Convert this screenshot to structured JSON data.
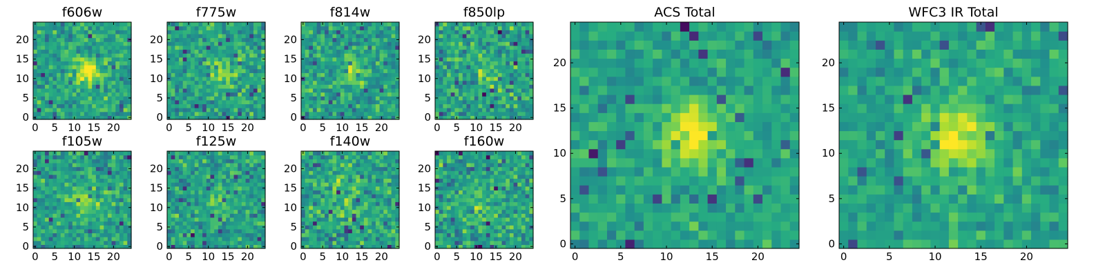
{
  "figure": {
    "colormap": "viridis",
    "background": "#ffffff"
  },
  "chart_data": [
    {
      "type": "heatmap",
      "title": "f606w",
      "grid": false,
      "xlim": [
        -0.5,
        24.5
      ],
      "ylim": [
        -0.5,
        24.5
      ],
      "xticks": [
        0,
        5,
        10,
        15,
        20
      ],
      "yticks": [
        0,
        5,
        10,
        15,
        20
      ],
      "source_center": [
        13.5,
        12
      ],
      "source_width": 2.5,
      "peak": 0.95,
      "noise": 0.2,
      "seed": 11
    },
    {
      "type": "heatmap",
      "title": "f775w",
      "grid": false,
      "xlim": [
        -0.5,
        24.5
      ],
      "ylim": [
        -0.5,
        24.5
      ],
      "xticks": [
        0,
        5,
        10,
        15,
        20
      ],
      "yticks": [
        0,
        5,
        10,
        15,
        20
      ],
      "source_center": [
        14,
        11.5
      ],
      "source_width": 2.3,
      "peak": 0.7,
      "noise": 0.2,
      "seed": 23
    },
    {
      "type": "heatmap",
      "title": "f814w",
      "grid": false,
      "xlim": [
        -0.5,
        24.5
      ],
      "ylim": [
        -0.5,
        24.5
      ],
      "xticks": [
        0,
        5,
        10,
        15,
        20
      ],
      "yticks": [
        0,
        5,
        10,
        15,
        20
      ],
      "source_center": [
        13,
        12
      ],
      "source_width": 2.2,
      "peak": 0.6,
      "noise": 0.2,
      "seed": 37
    },
    {
      "type": "heatmap",
      "title": "f850lp",
      "grid": false,
      "xlim": [
        -0.5,
        24.5
      ],
      "ylim": [
        -0.5,
        24.5
      ],
      "xticks": [
        0,
        5,
        10,
        15,
        20
      ],
      "yticks": [
        0,
        5,
        10,
        15,
        20
      ],
      "source_center": [
        13,
        11
      ],
      "source_width": 2.5,
      "peak": 0.3,
      "noise": 0.22,
      "seed": 41
    },
    {
      "type": "heatmap",
      "title": "f105w",
      "grid": false,
      "xlim": [
        -0.5,
        24.5
      ],
      "ylim": [
        -0.5,
        24.5
      ],
      "xticks": [
        0,
        5,
        10,
        15,
        20
      ],
      "yticks": [
        0,
        5,
        10,
        15,
        20
      ],
      "source_center": [
        12,
        11.5
      ],
      "source_width": 3.0,
      "peak": 0.45,
      "noise": 0.2,
      "seed": 53
    },
    {
      "type": "heatmap",
      "title": "f125w",
      "grid": false,
      "xlim": [
        -0.5,
        24.5
      ],
      "ylim": [
        -0.5,
        24.5
      ],
      "xticks": [
        0,
        5,
        10,
        15,
        20
      ],
      "yticks": [
        0,
        5,
        10,
        15,
        20
      ],
      "source_center": [
        13,
        11
      ],
      "source_width": 3.0,
      "peak": 0.35,
      "noise": 0.2,
      "seed": 67
    },
    {
      "type": "heatmap",
      "title": "f140w",
      "grid": false,
      "xlim": [
        -0.5,
        24.5
      ],
      "ylim": [
        -0.5,
        24.5
      ],
      "xticks": [
        0,
        5,
        10,
        15,
        20
      ],
      "yticks": [
        0,
        5,
        10,
        15,
        20
      ],
      "source_center": [
        11,
        12
      ],
      "source_width": 3.5,
      "peak": 0.3,
      "noise": 0.22,
      "seed": 71
    },
    {
      "type": "heatmap",
      "title": "f160w",
      "grid": false,
      "xlim": [
        -0.5,
        24.5
      ],
      "ylim": [
        -0.5,
        24.5
      ],
      "xticks": [
        0,
        5,
        10,
        15,
        20
      ],
      "yticks": [
        0,
        5,
        10,
        15,
        20
      ],
      "source_center": [
        12,
        12
      ],
      "source_width": 3.5,
      "peak": 0.3,
      "noise": 0.22,
      "seed": 83
    },
    {
      "type": "heatmap",
      "title": "ACS Total",
      "grid": false,
      "xlim": [
        -0.5,
        24.5
      ],
      "ylim": [
        -0.5,
        24.5
      ],
      "xticks": [
        0,
        5,
        10,
        15,
        20
      ],
      "yticks": [
        0,
        5,
        10,
        15,
        20
      ],
      "source_center": [
        13,
        12
      ],
      "source_width": 2.3,
      "peak": 1.0,
      "noise": 0.15,
      "seed": 97
    },
    {
      "type": "heatmap",
      "title": "WFC3 IR Total",
      "grid": false,
      "xlim": [
        -0.5,
        24.5
      ],
      "ylim": [
        -0.5,
        24.5
      ],
      "xticks": [
        0,
        5,
        10,
        15,
        20
      ],
      "yticks": [
        0,
        5,
        10,
        15,
        20
      ],
      "source_center": [
        12.5,
        12
      ],
      "source_width": 2.8,
      "peak": 0.85,
      "noise": 0.15,
      "seed": 103
    }
  ]
}
